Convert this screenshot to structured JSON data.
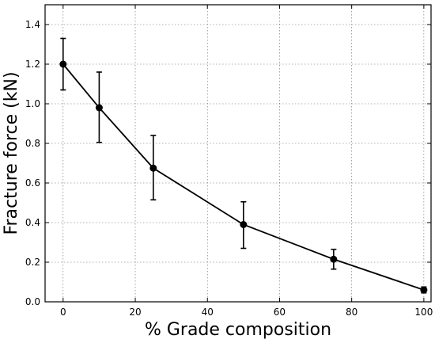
{
  "chart_data": {
    "type": "line",
    "title": "",
    "xlabel": "% Grade composition",
    "ylabel": "Fracture force (kN)",
    "xlim": [
      -5,
      102
    ],
    "ylim": [
      0,
      1.5
    ],
    "xticks": [
      0,
      20,
      40,
      60,
      80,
      100
    ],
    "xtick_labels": [
      "0",
      "20",
      "40",
      "60",
      "80",
      "100"
    ],
    "yticks": [
      0,
      0.2,
      0.4,
      0.6,
      0.8,
      1.0,
      1.2,
      1.4
    ],
    "ytick_labels": [
      "0.0",
      "0.2",
      "0.4",
      "0.6",
      "0.8",
      "1.0",
      "1.2",
      "1.4"
    ],
    "grid": true,
    "series": [
      {
        "x": [
          0,
          10,
          25,
          50,
          75,
          100
        ],
        "y": [
          1.2,
          0.98,
          0.675,
          0.39,
          0.215,
          0.06
        ],
        "err_low": [
          0.13,
          0.175,
          0.16,
          0.12,
          0.05,
          0.015
        ],
        "err_high": [
          0.13,
          0.18,
          0.165,
          0.115,
          0.05,
          0.015
        ],
        "color": "#000000",
        "marker": "circle"
      }
    ]
  }
}
